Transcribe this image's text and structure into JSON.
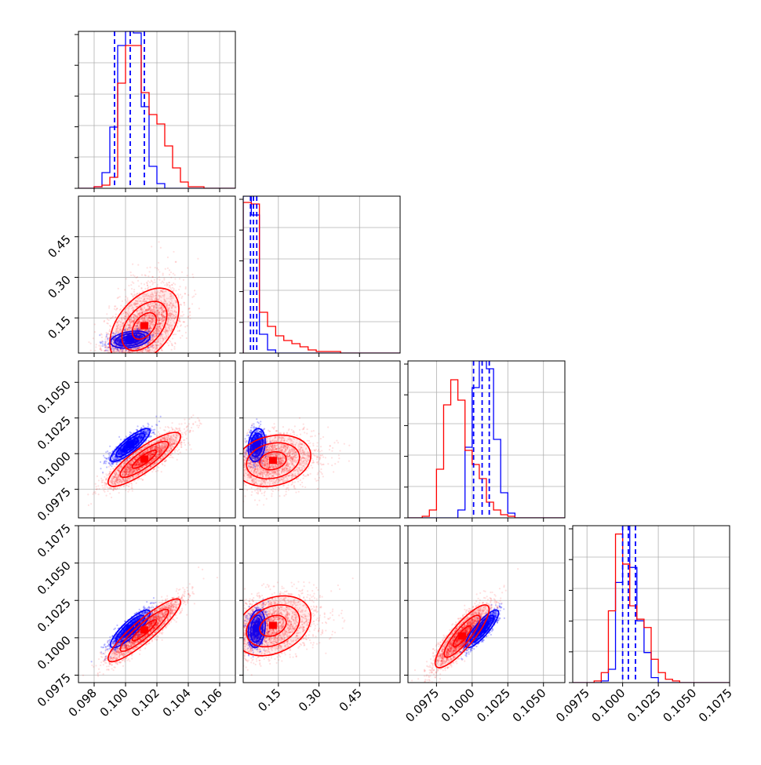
{
  "chart_data": {
    "type": "corner",
    "grid": true,
    "colors": {
      "blue": "#0000ff",
      "red": "#ff0000"
    },
    "parameters": [
      {
        "index": 0,
        "range": [
          0.097,
          0.107
        ],
        "ticks": [
          "0.098",
          "0.100",
          "0.102",
          "0.104",
          "0.106"
        ],
        "tick_values": [
          0.098,
          0.1,
          0.102,
          0.104,
          0.106
        ]
      },
      {
        "index": 1,
        "range": [
          0.02,
          0.6
        ],
        "ticks": [
          "0.15",
          "0.30",
          "0.45"
        ],
        "tick_values": [
          0.15,
          0.3,
          0.45
        ]
      },
      {
        "index": 2,
        "range": [
          0.0955,
          0.1065
        ],
        "ticks": [
          "0.0975",
          "0.1000",
          "0.1025",
          "0.1050"
        ],
        "tick_values": [
          0.0975,
          0.1,
          0.1025,
          0.105
        ]
      },
      {
        "index": 3,
        "range": [
          0.0965,
          0.1075
        ],
        "ticks": [
          "0.0975",
          "0.1000",
          "0.1025",
          "0.1050",
          "0.1075"
        ],
        "tick_values": [
          0.0975,
          0.1,
          0.1025,
          0.105,
          0.1075
        ]
      }
    ],
    "y_axis_ticks": {
      "row1": {
        "ticks": [
          "0.15",
          "0.30",
          "0.45"
        ],
        "tick_values": [
          0.15,
          0.3,
          0.45
        ],
        "range": [
          0.02,
          0.6
        ]
      },
      "row2": {
        "ticks": [
          "0.0975",
          "0.1000",
          "0.1025",
          "0.1050"
        ],
        "tick_values": [
          0.0975,
          0.1,
          0.1025,
          0.105
        ],
        "range": [
          0.0955,
          0.1065
        ]
      },
      "row3": {
        "ticks": [
          "0.0975",
          "0.1000",
          "0.1025",
          "0.1050",
          "0.1075"
        ],
        "tick_values": [
          0.0975,
          0.1,
          0.1025,
          0.105,
          0.1075
        ],
        "range": [
          0.097,
          0.1075
        ]
      }
    },
    "histograms": [
      {
        "param": 0,
        "bin_edges": [
          0.097,
          0.0975,
          0.098,
          0.0985,
          0.099,
          0.0995,
          0.1,
          0.1005,
          0.101,
          0.1015,
          0.102,
          0.1025,
          0.103,
          0.1035,
          0.104,
          0.1045,
          0.105,
          0.1055,
          0.106,
          0.1065,
          0.107
        ],
        "series": [
          {
            "color": "blue",
            "counts": [
              0,
              0,
              0.01,
              0.1,
              0.39,
              0.91,
              1.0,
              0.99,
              0.52,
              0.14,
              0.03,
              0,
              0,
              0,
              0,
              0,
              0,
              0,
              0,
              0
            ]
          },
          {
            "color": "red",
            "counts": [
              0,
              0,
              0.01,
              0.02,
              0.07,
              0.67,
              0.91,
              0.91,
              0.61,
              0.47,
              0.41,
              0.27,
              0.13,
              0.04,
              0.01,
              0.01,
              0,
              0,
              0,
              0
            ]
          }
        ],
        "quantile_lines": {
          "color": "blue",
          "values": [
            0.0993,
            0.1003,
            0.1012
          ]
        }
      },
      {
        "param": 1,
        "bin_edges": [
          0.02,
          0.05,
          0.08,
          0.11,
          0.14,
          0.17,
          0.2,
          0.23,
          0.26,
          0.29,
          0.32,
          0.35,
          0.38,
          0.41,
          0.44,
          0.47,
          0.5,
          0.53,
          0.56,
          0.6
        ],
        "series": [
          {
            "color": "blue",
            "counts": [
              1.0,
              0.88,
              0.12,
              0.02,
              0,
              0,
              0,
              0,
              0,
              0,
              0,
              0,
              0,
              0,
              0,
              0,
              0,
              0,
              0
            ]
          },
          {
            "color": "red",
            "counts": [
              0.96,
              0.95,
              0.26,
              0.17,
              0.11,
              0.08,
              0.06,
              0.04,
              0.02,
              0.01,
              0.01,
              0.01,
              0,
              0,
              0,
              0,
              0,
              0,
              0
            ]
          }
        ],
        "quantile_lines": {
          "color": "blue",
          "values": [
            0.047,
            0.058,
            0.07
          ]
        }
      },
      {
        "param": 2,
        "bin_edges": [
          0.0955,
          0.096,
          0.0965,
          0.097,
          0.0975,
          0.098,
          0.0985,
          0.099,
          0.0995,
          0.1,
          0.1005,
          0.101,
          0.1015,
          0.102,
          0.1025,
          0.103,
          0.1035,
          0.104,
          0.1045,
          0.105,
          0.1055,
          0.106,
          0.1065
        ],
        "series": [
          {
            "color": "blue",
            "counts": [
              0,
              0,
              0,
              0,
              0,
              0,
              0,
              0.05,
              0.45,
              0.83,
              1.0,
              0.95,
              0.5,
              0.16,
              0.03,
              0,
              0,
              0,
              0,
              0,
              0,
              0
            ]
          },
          {
            "color": "red",
            "counts": [
              0,
              0,
              0.01,
              0.05,
              0.31,
              0.72,
              0.88,
              0.75,
              0.43,
              0.34,
              0.25,
              0.1,
              0.05,
              0.02,
              0.01,
              0,
              0,
              0,
              0,
              0,
              0,
              0
            ]
          }
        ],
        "quantile_lines": {
          "color": "blue",
          "values": [
            0.1001,
            0.1007,
            0.1012
          ]
        }
      },
      {
        "param": 3,
        "bin_edges": [
          0.0965,
          0.097,
          0.0975,
          0.098,
          0.0985,
          0.099,
          0.0995,
          0.1,
          0.1005,
          0.101,
          0.1015,
          0.102,
          0.1025,
          0.103,
          0.1035,
          0.104,
          0.1045,
          0.105,
          0.1055,
          0.106,
          0.1065,
          0.107,
          0.1075
        ],
        "series": [
          {
            "color": "blue",
            "counts": [
              0,
              0,
              0,
              0,
              0.01,
              0.08,
              0.6,
              0.94,
              0.69,
              0.37,
              0.18,
              0.03,
              0,
              0,
              0,
              0,
              0,
              0,
              0,
              0,
              0,
              0
            ]
          },
          {
            "color": "red",
            "counts": [
              0,
              0,
              0,
              0.01,
              0.06,
              0.43,
              0.89,
              0.71,
              0.46,
              0.38,
              0.33,
              0.14,
              0.06,
              0.02,
              0.01,
              0,
              0,
              0,
              0,
              0,
              0,
              0
            ]
          }
        ],
        "quantile_lines": {
          "color": "blue",
          "values": [
            0.1,
            0.1004,
            0.1009
          ]
        }
      }
    ],
    "scatter_panels": [
      {
        "x_param": 0,
        "y_param": 1,
        "series": [
          {
            "color": "blue",
            "mean": [
              0.1003,
              0.07
            ],
            "sd": [
              0.0006,
              0.015
            ],
            "rho": 0.3,
            "n": 1200,
            "alpha": 0.25,
            "contour_levels": [
              1.0,
              1.6,
              2.1
            ]
          },
          {
            "color": "red",
            "mean": [
              0.1012,
              0.12
            ],
            "sd": [
              0.0011,
              0.07
            ],
            "rho": 0.45,
            "n": 3000,
            "alpha": 0.12,
            "contour_levels": [
              0.7,
              1.3,
              2.0
            ]
          }
        ]
      },
      {
        "x_param": 0,
        "y_param": 2,
        "series": [
          {
            "color": "blue",
            "mean": [
              0.1003,
              0.1006
            ],
            "sd": [
              0.0006,
              0.00055
            ],
            "rho": 0.85,
            "n": 1500,
            "alpha": 0.25,
            "contour_levels": [
              0.8,
              1.5,
              2.1
            ]
          },
          {
            "color": "red",
            "mean": [
              0.1012,
              0.0996
            ],
            "sd": [
              0.0011,
              0.0009
            ],
            "rho": 0.85,
            "n": 3000,
            "alpha": 0.12,
            "contour_levels": [
              0.7,
              1.4,
              2.1
            ]
          }
        ]
      },
      {
        "x_param": 1,
        "y_param": 2,
        "series": [
          {
            "color": "blue",
            "mean": [
              0.07,
              0.1006
            ],
            "sd": [
              0.015,
              0.00055
            ],
            "rho": 0.2,
            "n": 1200,
            "alpha": 0.25,
            "contour_levels": [
              0.8,
              1.5,
              2.1
            ]
          },
          {
            "color": "red",
            "mean": [
              0.13,
              0.0995
            ],
            "sd": [
              0.07,
              0.0009
            ],
            "rho": 0.2,
            "n": 2500,
            "alpha": 0.12,
            "contour_levels": [
              0.7,
              1.4,
              2.0
            ]
          }
        ]
      },
      {
        "x_param": 0,
        "y_param": 3,
        "series": [
          {
            "color": "blue",
            "mean": [
              0.1003,
              0.1006
            ],
            "sd": [
              0.0006,
              0.0006
            ],
            "rho": 0.85,
            "n": 1500,
            "alpha": 0.25,
            "contour_levels": [
              0.8,
              1.5,
              2.1
            ]
          },
          {
            "color": "red",
            "mean": [
              0.1012,
              0.1005
            ],
            "sd": [
              0.0011,
              0.001
            ],
            "rho": 0.9,
            "n": 3000,
            "alpha": 0.12,
            "contour_levels": [
              0.7,
              1.4,
              2.1
            ]
          }
        ]
      },
      {
        "x_param": 1,
        "y_param": 3,
        "series": [
          {
            "color": "blue",
            "mean": [
              0.07,
              0.1006
            ],
            "sd": [
              0.015,
              0.0006
            ],
            "rho": 0.2,
            "n": 1200,
            "alpha": 0.25,
            "contour_levels": [
              0.8,
              1.5,
              2.1
            ]
          },
          {
            "color": "red",
            "mean": [
              0.13,
              0.1008
            ],
            "sd": [
              0.07,
              0.001
            ],
            "rho": 0.3,
            "n": 2500,
            "alpha": 0.12,
            "contour_levels": [
              0.7,
              1.4,
              2.0
            ]
          }
        ]
      },
      {
        "x_param": 2,
        "y_param": 3,
        "series": [
          {
            "color": "blue",
            "mean": [
              0.1007,
              0.1006
            ],
            "sd": [
              0.00055,
              0.0006
            ],
            "rho": 0.85,
            "n": 1500,
            "alpha": 0.25,
            "contour_levels": [
              0.8,
              1.5,
              2.1
            ]
          },
          {
            "color": "red",
            "mean": [
              0.0993,
              0.1001
            ],
            "sd": [
              0.0009,
              0.001
            ],
            "rho": 0.85,
            "n": 3000,
            "alpha": 0.12,
            "contour_levels": [
              0.7,
              1.4,
              2.1
            ]
          }
        ]
      }
    ]
  }
}
